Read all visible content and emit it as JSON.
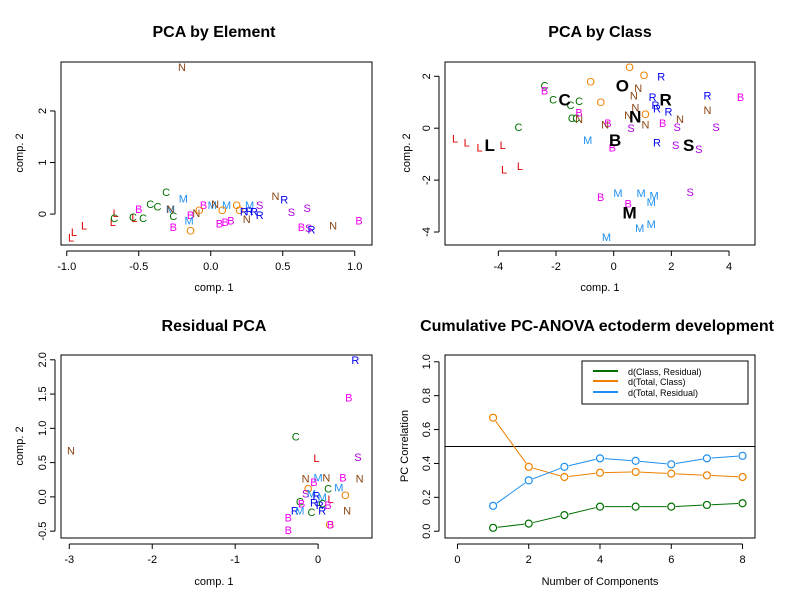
{
  "colors": {
    "L": "#e00000",
    "C": "#007000",
    "M": "#1e8ff0",
    "N": "#8b4513",
    "B": "#f000f0",
    "O": "#f08000",
    "S": "#b000e0",
    "R": "#0000f0",
    "green_line": "#007000",
    "orange_line": "#f08000",
    "blue_line": "#1e8ff0"
  },
  "chart_data": [
    {
      "type": "scatter",
      "title": "PCA by Element",
      "xlabel": "comp. 1",
      "ylabel": "comp. 2",
      "xlim": [
        -1.04,
        1.12
      ],
      "ylim": [
        -0.6,
        2.95
      ],
      "xticks": [
        -1.0,
        -0.5,
        0.0,
        0.5,
        1.0
      ],
      "xtick_labels": [
        "-1.0",
        "-0.5",
        "0.0",
        "0.5",
        "1.0"
      ],
      "yticks": [
        0,
        1,
        2
      ],
      "ytick_labels": [
        "0",
        "1",
        "2"
      ],
      "points": [
        {
          "label": "N",
          "x": -0.2,
          "y": 2.85
        },
        {
          "label": "L",
          "x": -0.97,
          "y": -0.45
        },
        {
          "label": "L",
          "x": -0.95,
          "y": -0.35
        },
        {
          "label": "L",
          "x": -0.88,
          "y": -0.22
        },
        {
          "label": "L",
          "x": -0.68,
          "y": -0.15
        },
        {
          "label": "L",
          "x": -0.66,
          "y": 0.02
        },
        {
          "label": "L",
          "x": -0.53,
          "y": -0.08
        },
        {
          "label": "C",
          "x": -0.67,
          "y": -0.08
        },
        {
          "label": "C",
          "x": -0.54,
          "y": -0.06
        },
        {
          "label": "C",
          "x": -0.47,
          "y": -0.08
        },
        {
          "label": "C",
          "x": -0.42,
          "y": 0.2
        },
        {
          "label": "C",
          "x": -0.37,
          "y": 0.15
        },
        {
          "label": "C",
          "x": -0.31,
          "y": 0.43
        },
        {
          "label": "C",
          "x": -0.26,
          "y": -0.04
        },
        {
          "label": "B",
          "x": -0.5,
          "y": 0.1
        },
        {
          "label": "B",
          "x": -0.26,
          "y": -0.25
        },
        {
          "label": "B",
          "x": -0.14,
          "y": -0.02
        },
        {
          "label": "B",
          "x": -0.05,
          "y": 0.18
        },
        {
          "label": "B",
          "x": 0.06,
          "y": -0.18
        },
        {
          "label": "B",
          "x": 0.1,
          "y": -0.15
        },
        {
          "label": "B",
          "x": 0.14,
          "y": -0.12
        },
        {
          "label": "B",
          "x": 0.63,
          "y": -0.25
        },
        {
          "label": "B",
          "x": 1.03,
          "y": -0.12
        },
        {
          "label": "M",
          "x": -0.28,
          "y": 0.1
        },
        {
          "label": "M",
          "x": -0.19,
          "y": 0.3
        },
        {
          "label": "M",
          "x": -0.15,
          "y": -0.12
        },
        {
          "label": "M",
          "x": 0.01,
          "y": 0.18
        },
        {
          "label": "M",
          "x": 0.11,
          "y": 0.18
        },
        {
          "label": "M",
          "x": 0.27,
          "y": 0.18
        },
        {
          "label": "N",
          "x": -0.28,
          "y": 0.1
        },
        {
          "label": "N",
          "x": -0.1,
          "y": 0.02
        },
        {
          "label": "N",
          "x": 0.03,
          "y": 0.2
        },
        {
          "label": "N",
          "x": 0.45,
          "y": 0.35
        },
        {
          "label": "N",
          "x": 0.85,
          "y": -0.22
        },
        {
          "label": "N",
          "x": 0.25,
          "y": -0.1
        },
        {
          "label": "O",
          "x": -0.14,
          "y": -0.32
        },
        {
          "label": "O",
          "x": -0.08,
          "y": 0.08
        },
        {
          "label": "O",
          "x": 0.08,
          "y": 0.08
        },
        {
          "label": "O",
          "x": 0.18,
          "y": 0.18
        },
        {
          "label": "O",
          "x": 0.2,
          "y": 0.08
        },
        {
          "label": "R",
          "x": 0.23,
          "y": 0.05
        },
        {
          "label": "R",
          "x": 0.27,
          "y": 0.06
        },
        {
          "label": "R",
          "x": 0.3,
          "y": 0.05
        },
        {
          "label": "R",
          "x": 0.34,
          "y": -0.02
        },
        {
          "label": "R",
          "x": 0.51,
          "y": 0.28
        },
        {
          "label": "R",
          "x": 0.7,
          "y": -0.3
        },
        {
          "label": "S",
          "x": 0.34,
          "y": 0.18
        },
        {
          "label": "S",
          "x": 0.56,
          "y": 0.04
        },
        {
          "label": "S",
          "x": 0.67,
          "y": 0.12
        },
        {
          "label": "S",
          "x": 0.68,
          "y": -0.27
        }
      ]
    },
    {
      "type": "scatter",
      "title": "PCA by Class",
      "xlabel": "comp. 1",
      "ylabel": "comp. 2",
      "xlim": [
        -5.85,
        4.9
      ],
      "ylim": [
        -4.5,
        2.55
      ],
      "xticks": [
        -4,
        -2,
        0,
        2,
        4
      ],
      "xtick_labels": [
        "-4",
        "-2",
        "0",
        "2",
        "4"
      ],
      "yticks": [
        -4,
        -2,
        0,
        2
      ],
      "ytick_labels": [
        "-4",
        "-2",
        "0",
        "2"
      ],
      "points": [
        {
          "label": "L",
          "x": -5.5,
          "y": -0.4
        },
        {
          "label": "L",
          "x": -5.1,
          "y": -0.55
        },
        {
          "label": "L",
          "x": -4.65,
          "y": -0.75
        },
        {
          "label": "L",
          "x": -3.85,
          "y": -0.65
        },
        {
          "label": "L",
          "x": -3.8,
          "y": -1.6
        },
        {
          "label": "L",
          "x": -3.25,
          "y": -1.45
        },
        {
          "label": "C",
          "x": -3.3,
          "y": 0.05
        },
        {
          "label": "C",
          "x": -2.4,
          "y": 1.65
        },
        {
          "label": "C",
          "x": -2.1,
          "y": 1.1
        },
        {
          "label": "C",
          "x": -1.5,
          "y": 0.9
        },
        {
          "label": "C",
          "x": -1.2,
          "y": 1.05
        },
        {
          "label": "C",
          "x": -1.45,
          "y": 0.4
        },
        {
          "label": "C",
          "x": -1.3,
          "y": 0.4
        },
        {
          "label": "B",
          "x": -2.4,
          "y": 1.45
        },
        {
          "label": "B",
          "x": -1.2,
          "y": 0.6
        },
        {
          "label": "B",
          "x": -0.2,
          "y": 0.2
        },
        {
          "label": "B",
          "x": -0.05,
          "y": -0.75
        },
        {
          "label": "B",
          "x": 1.7,
          "y": 0.2
        },
        {
          "label": "B",
          "x": 4.4,
          "y": 1.2
        },
        {
          "label": "B",
          "x": -0.45,
          "y": -2.65
        },
        {
          "label": "B",
          "x": 0.5,
          "y": -2.9
        },
        {
          "label": "N",
          "x": -1.2,
          "y": 0.35
        },
        {
          "label": "N",
          "x": -0.3,
          "y": 0.15
        },
        {
          "label": "N",
          "x": 0.85,
          "y": 1.55
        },
        {
          "label": "N",
          "x": 0.7,
          "y": 1.25
        },
        {
          "label": "N",
          "x": 0.75,
          "y": 0.8
        },
        {
          "label": "N",
          "x": 0.5,
          "y": 0.5
        },
        {
          "label": "N",
          "x": 1.1,
          "y": 0.15
        },
        {
          "label": "N",
          "x": 2.3,
          "y": 0.35
        },
        {
          "label": "N",
          "x": 3.25,
          "y": 0.7
        },
        {
          "label": "O",
          "x": -0.8,
          "y": 1.8
        },
        {
          "label": "O",
          "x": -0.45,
          "y": 1.0
        },
        {
          "label": "O",
          "x": 0.55,
          "y": 2.35
        },
        {
          "label": "O",
          "x": 1.05,
          "y": 2.05
        },
        {
          "label": "O",
          "x": 1.1,
          "y": 0.55
        },
        {
          "label": "R",
          "x": 1.65,
          "y": 2.0
        },
        {
          "label": "R",
          "x": 1.35,
          "y": 1.2
        },
        {
          "label": "R",
          "x": 1.45,
          "y": 0.9
        },
        {
          "label": "R",
          "x": 1.5,
          "y": 0.75
        },
        {
          "label": "R",
          "x": 1.9,
          "y": 0.65
        },
        {
          "label": "R",
          "x": 3.25,
          "y": 1.25
        },
        {
          "label": "R",
          "x": 1.5,
          "y": -0.55
        },
        {
          "label": "S",
          "x": 0.6,
          "y": 0.0
        },
        {
          "label": "S",
          "x": 2.2,
          "y": 0.05
        },
        {
          "label": "S",
          "x": 3.55,
          "y": 0.05
        },
        {
          "label": "S",
          "x": 2.15,
          "y": -0.65
        },
        {
          "label": "S",
          "x": 2.95,
          "y": -0.8
        },
        {
          "label": "S",
          "x": 2.65,
          "y": -2.45
        },
        {
          "label": "M",
          "x": -0.9,
          "y": -0.45
        },
        {
          "label": "M",
          "x": 0.15,
          "y": -2.5
        },
        {
          "label": "M",
          "x": 0.95,
          "y": -2.5
        },
        {
          "label": "M",
          "x": 1.4,
          "y": -2.6
        },
        {
          "label": "M",
          "x": 1.3,
          "y": -2.85
        },
        {
          "label": "M",
          "x": 1.3,
          "y": -3.7
        },
        {
          "label": "M",
          "x": 0.9,
          "y": -3.85
        },
        {
          "label": "M",
          "x": -0.25,
          "y": -4.2
        }
      ],
      "centroids": [
        {
          "label": "L",
          "x": -4.3,
          "y": -0.65
        },
        {
          "label": "C",
          "x": -1.7,
          "y": 1.1
        },
        {
          "label": "O",
          "x": 0.3,
          "y": 1.65
        },
        {
          "label": "R",
          "x": 1.8,
          "y": 1.1
        },
        {
          "label": "N",
          "x": 0.75,
          "y": 0.45
        },
        {
          "label": "B",
          "x": 0.05,
          "y": -0.45
        },
        {
          "label": "S",
          "x": 2.6,
          "y": -0.65
        },
        {
          "label": "M",
          "x": 0.55,
          "y": -3.25
        }
      ]
    },
    {
      "type": "scatter",
      "title": "Residual PCA",
      "xlabel": "comp. 1",
      "ylabel": "comp. 2",
      "xlim": [
        -3.1,
        0.65
      ],
      "ylim": [
        -0.6,
        2.07
      ],
      "xticks": [
        -3,
        -2,
        -1,
        0
      ],
      "xtick_labels": [
        "-3",
        "-2",
        "-1",
        "0"
      ],
      "yticks": [
        -0.5,
        0.0,
        0.5,
        1.0,
        1.5,
        2.0
      ],
      "ytick_labels": [
        "-0.5",
        "0.0",
        "0.5",
        "1.0",
        "1.5",
        "2.0"
      ],
      "points": [
        {
          "label": "N",
          "x": -2.98,
          "y": 0.68
        },
        {
          "label": "R",
          "x": 0.45,
          "y": 2.0
        },
        {
          "label": "B",
          "x": 0.37,
          "y": 1.45
        },
        {
          "label": "C",
          "x": -0.27,
          "y": 0.88
        },
        {
          "label": "L",
          "x": -0.02,
          "y": 0.57
        },
        {
          "label": "S",
          "x": 0.48,
          "y": 0.58
        },
        {
          "label": "N",
          "x": -0.15,
          "y": 0.27
        },
        {
          "label": "M",
          "x": 0.0,
          "y": 0.28
        },
        {
          "label": "N",
          "x": 0.1,
          "y": 0.28
        },
        {
          "label": "B",
          "x": 0.3,
          "y": 0.28
        },
        {
          "label": "N",
          "x": 0.5,
          "y": 0.27
        },
        {
          "label": "B",
          "x": -0.05,
          "y": 0.22
        },
        {
          "label": "O",
          "x": -0.12,
          "y": 0.12
        },
        {
          "label": "C",
          "x": 0.12,
          "y": 0.12
        },
        {
          "label": "M",
          "x": 0.25,
          "y": 0.14
        },
        {
          "label": "O",
          "x": 0.33,
          "y": 0.03
        },
        {
          "label": "S",
          "x": -0.15,
          "y": 0.05
        },
        {
          "label": "M",
          "x": -0.08,
          "y": 0.05
        },
        {
          "label": "R",
          "x": -0.02,
          "y": 0.02
        },
        {
          "label": "M",
          "x": 0.05,
          "y": 0.0
        },
        {
          "label": "L",
          "x": 0.15,
          "y": -0.03
        },
        {
          "label": "C",
          "x": -0.22,
          "y": -0.07
        },
        {
          "label": "B",
          "x": -0.2,
          "y": -0.1
        },
        {
          "label": "R",
          "x": -0.05,
          "y": -0.08
        },
        {
          "label": "R",
          "x": 0.02,
          "y": -0.12
        },
        {
          "label": "C",
          "x": 0.05,
          "y": -0.1
        },
        {
          "label": "B",
          "x": 0.12,
          "y": -0.12
        },
        {
          "label": "R",
          "x": -0.28,
          "y": -0.2
        },
        {
          "label": "M",
          "x": -0.22,
          "y": -0.2
        },
        {
          "label": "C",
          "x": -0.08,
          "y": -0.22
        },
        {
          "label": "R",
          "x": 0.05,
          "y": -0.2
        },
        {
          "label": "N",
          "x": 0.35,
          "y": -0.2
        },
        {
          "label": "B",
          "x": -0.36,
          "y": -0.3
        },
        {
          "label": "B",
          "x": -0.36,
          "y": -0.48
        },
        {
          "label": "O",
          "x": 0.14,
          "y": -0.4
        },
        {
          "label": "B",
          "x": 0.15,
          "y": -0.4
        }
      ]
    },
    {
      "type": "line",
      "title": "Cumulative PC-ANOVA ectoderm development",
      "xlabel": "Number of Components",
      "ylabel": "PC Correlation",
      "xlim": [
        -0.35,
        8.35
      ],
      "ylim": [
        -0.04,
        1.04
      ],
      "xticks": [
        0,
        2,
        4,
        6,
        8
      ],
      "xtick_labels": [
        "0",
        "2",
        "4",
        "6",
        "8"
      ],
      "yticks": [
        0.0,
        0.2,
        0.4,
        0.6,
        0.8,
        1.0
      ],
      "ytick_labels": [
        "0.0",
        "0.2",
        "0.4",
        "0.6",
        "0.8",
        "1.0"
      ],
      "hline": 0.5,
      "legend_position": "top-right",
      "x": [
        1,
        2,
        3,
        4,
        5,
        6,
        7,
        8
      ],
      "series": [
        {
          "name": "d(Class, Residual)",
          "color_key": "green_line",
          "values": [
            0.02,
            0.045,
            0.095,
            0.145,
            0.145,
            0.145,
            0.155,
            0.165
          ]
        },
        {
          "name": "d(Total, Class)",
          "color_key": "orange_line",
          "values": [
            0.67,
            0.38,
            0.32,
            0.345,
            0.35,
            0.34,
            0.33,
            0.32
          ]
        },
        {
          "name": "d(Total, Residual)",
          "color_key": "blue_line",
          "values": [
            0.15,
            0.3,
            0.38,
            0.43,
            0.415,
            0.395,
            0.43,
            0.445
          ]
        }
      ]
    }
  ]
}
